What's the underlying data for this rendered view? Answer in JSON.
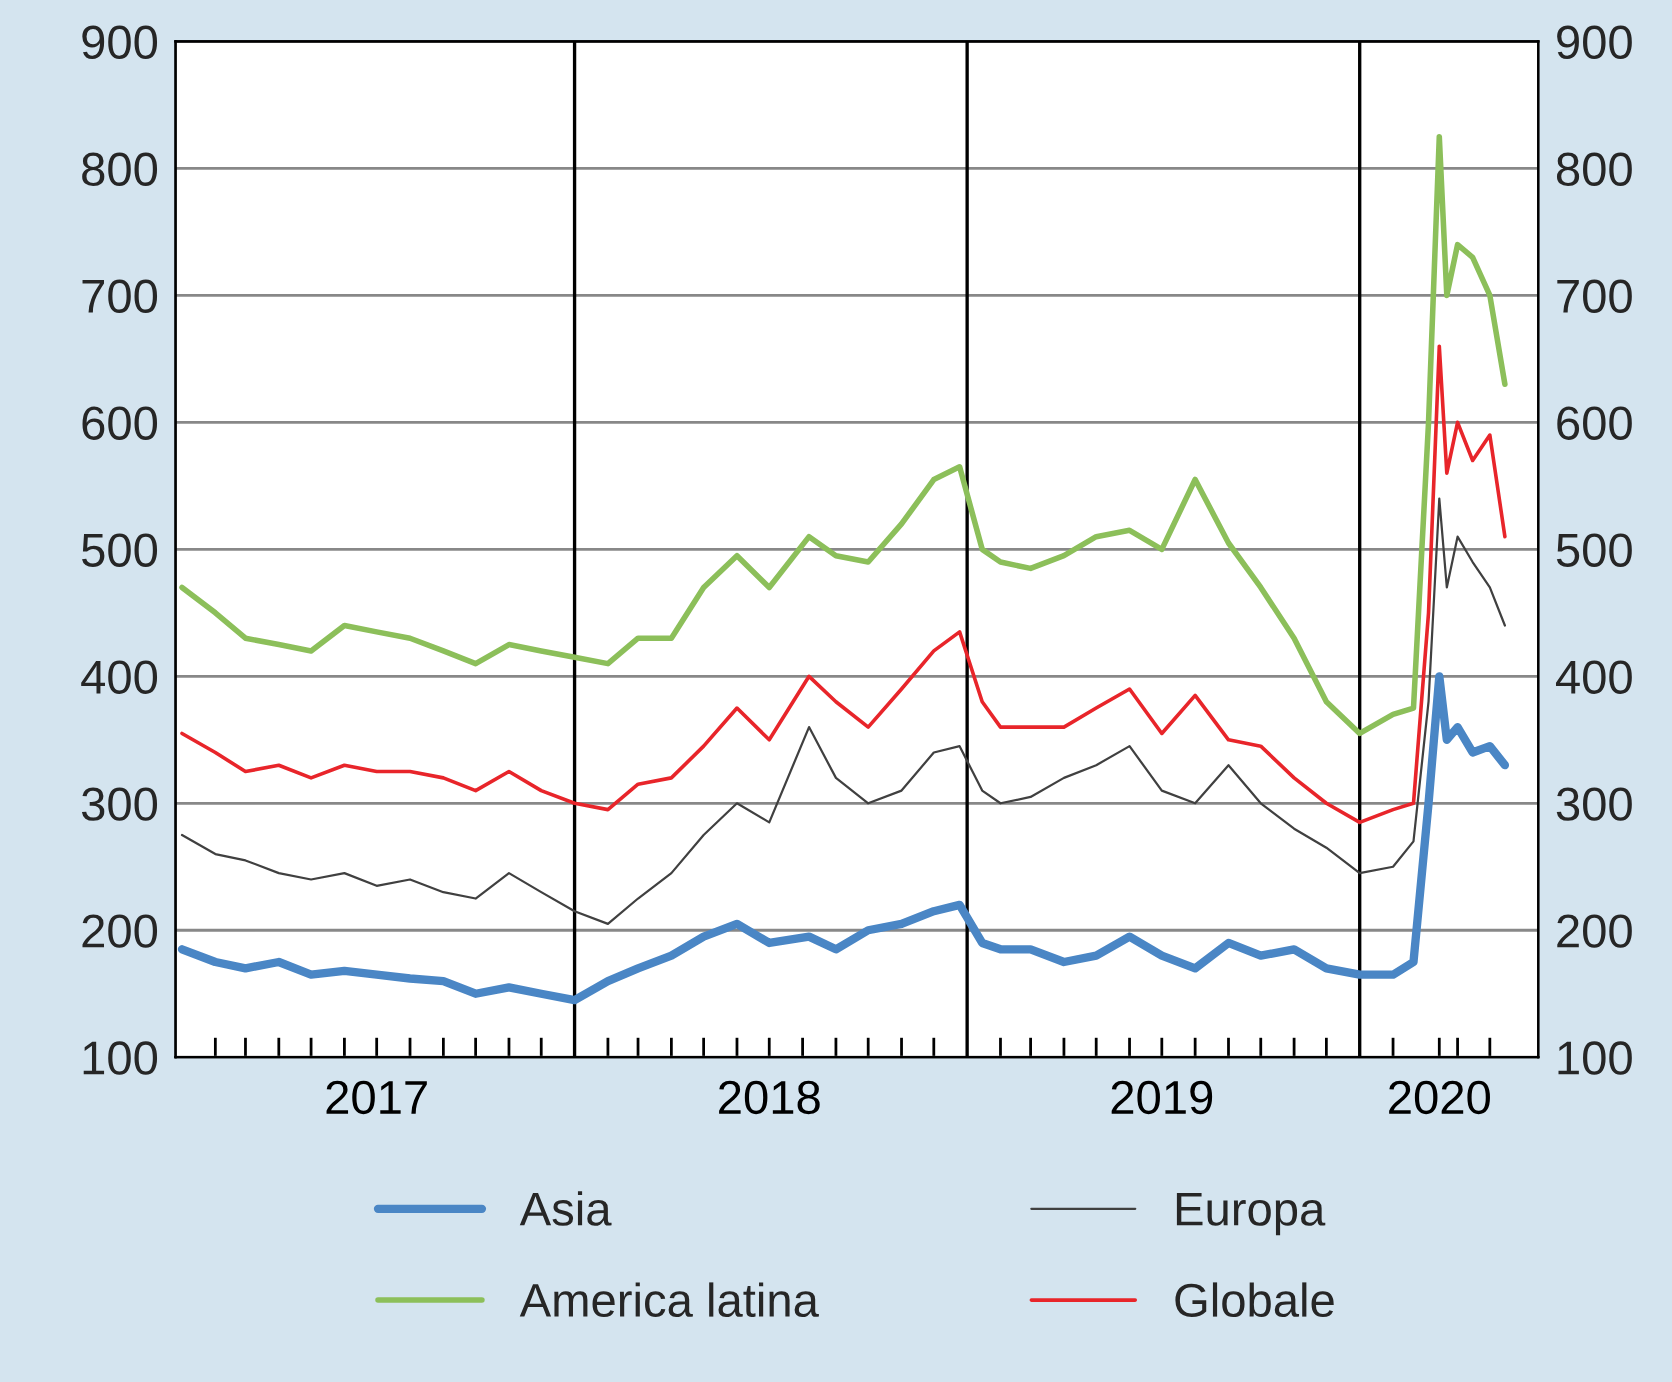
{
  "chart_data": {
    "type": "line",
    "xlim": [
      "2016-12-26",
      "2020-06-15"
    ],
    "xticks": [
      {
        "value": "2017-07-01",
        "label": "2017"
      },
      {
        "value": "2018-07-01",
        "label": "2018"
      },
      {
        "value": "2019-07-01",
        "label": "2019"
      },
      {
        "value": "2020-03-15",
        "label": "2020"
      },
      {
        "value": "2017-02-01",
        "label": null
      },
      {
        "value": "2017-03-01",
        "label": null
      },
      {
        "value": "2017-04-01",
        "label": null
      },
      {
        "value": "2017-05-01",
        "label": null
      },
      {
        "value": "2017-06-01",
        "label": null
      },
      {
        "value": "2017-08-01",
        "label": null
      },
      {
        "value": "2017-09-01",
        "label": null
      },
      {
        "value": "2017-10-01",
        "label": null
      },
      {
        "value": "2017-11-01",
        "label": null
      },
      {
        "value": "2017-12-01",
        "label": null
      },
      {
        "value": "2018-02-01",
        "label": null
      },
      {
        "value": "2018-03-01",
        "label": null
      },
      {
        "value": "2018-04-01",
        "label": null
      },
      {
        "value": "2018-05-01",
        "label": null
      },
      {
        "value": "2018-06-01",
        "label": null
      },
      {
        "value": "2018-08-01",
        "label": null
      },
      {
        "value": "2018-09-01",
        "label": null
      },
      {
        "value": "2018-10-01",
        "label": null
      },
      {
        "value": "2018-11-01",
        "label": null
      },
      {
        "value": "2018-12-01",
        "label": null
      },
      {
        "value": "2019-02-01",
        "label": null
      },
      {
        "value": "2019-03-01",
        "label": null
      },
      {
        "value": "2019-04-01",
        "label": null
      },
      {
        "value": "2019-05-01",
        "label": null
      },
      {
        "value": "2019-06-01",
        "label": null
      },
      {
        "value": "2019-08-01",
        "label": null
      },
      {
        "value": "2019-09-01",
        "label": null
      },
      {
        "value": "2019-10-01",
        "label": null
      },
      {
        "value": "2019-11-01",
        "label": null
      },
      {
        "value": "2019-12-01",
        "label": null
      },
      {
        "value": "2020-02-01",
        "label": null
      },
      {
        "value": "2020-04-01",
        "label": null
      },
      {
        "value": "2020-05-01",
        "label": null
      }
    ],
    "ylim": [
      100,
      900
    ],
    "yticks": [
      100,
      200,
      300,
      400,
      500,
      600,
      700,
      800,
      900
    ],
    "y2lim": [
      100,
      900
    ],
    "y2ticks": [
      100,
      200,
      300,
      400,
      500,
      600,
      700,
      800,
      900
    ],
    "grid": "y",
    "legend": "bottom",
    "marker": "none",
    "line_style": "solid",
    "ref_lines": [
      {
        "axis": "x",
        "value": "2018-01-01",
        "color": "#000000"
      },
      {
        "axis": "x",
        "value": "2019-01-01",
        "color": "#000000"
      },
      {
        "axis": "x",
        "value": "2020-01-01",
        "color": "#000000"
      }
    ],
    "x": [
      "2017-01-01",
      "2017-02-01",
      "2017-03-01",
      "2017-04-01",
      "2017-05-01",
      "2017-06-01",
      "2017-07-01",
      "2017-08-01",
      "2017-09-01",
      "2017-10-01",
      "2017-11-01",
      "2017-12-01",
      "2018-01-01",
      "2018-02-01",
      "2018-03-01",
      "2018-04-01",
      "2018-05-01",
      "2018-06-01",
      "2018-07-01",
      "2018-08-07",
      "2018-09-01",
      "2018-10-01",
      "2018-11-01",
      "2018-12-01",
      "2018-12-25",
      "2019-01-15",
      "2019-02-01",
      "2019-03-01",
      "2019-04-01",
      "2019-05-01",
      "2019-06-01",
      "2019-07-01",
      "2019-08-01",
      "2019-09-01",
      "2019-10-01",
      "2019-11-01",
      "2019-12-01",
      "2020-01-01",
      "2020-02-01",
      "2020-02-20",
      "2020-03-05",
      "2020-03-15",
      "2020-03-22",
      "2020-04-01",
      "2020-04-15",
      "2020-05-01",
      "2020-05-15"
    ],
    "series": [
      {
        "name": "Asia",
        "color": "#4a86c5",
        "values": [
          185,
          175,
          170,
          175,
          165,
          168,
          165,
          162,
          160,
          150,
          155,
          150,
          145,
          160,
          170,
          180,
          195,
          205,
          190,
          195,
          185,
          200,
          205,
          215,
          220,
          190,
          185,
          185,
          175,
          180,
          195,
          180,
          170,
          190,
          180,
          185,
          170,
          165,
          165,
          175,
          300,
          400,
          350,
          360,
          340,
          345,
          330
        ]
      },
      {
        "name": "Europa",
        "color": "#404040",
        "values": [
          275,
          260,
          255,
          245,
          240,
          245,
          235,
          240,
          230,
          225,
          245,
          230,
          215,
          205,
          225,
          245,
          275,
          300,
          285,
          360,
          320,
          300,
          310,
          340,
          345,
          310,
          300,
          305,
          320,
          330,
          345,
          310,
          300,
          330,
          300,
          280,
          265,
          245,
          250,
          270,
          380,
          540,
          470,
          510,
          490,
          470,
          440
        ]
      },
      {
        "name": "America latina",
        "color": "#8cbf5a",
        "values": [
          470,
          450,
          430,
          425,
          420,
          440,
          435,
          430,
          420,
          410,
          425,
          420,
          415,
          410,
          430,
          430,
          470,
          495,
          470,
          510,
          495,
          490,
          520,
          555,
          565,
          500,
          490,
          485,
          495,
          510,
          515,
          500,
          555,
          505,
          470,
          430,
          380,
          355,
          370,
          375,
          600,
          825,
          700,
          740,
          730,
          700,
          630
        ]
      },
      {
        "name": "Globale",
        "color": "#e8252a",
        "values": [
          355,
          340,
          325,
          330,
          320,
          330,
          325,
          325,
          320,
          310,
          325,
          310,
          300,
          295,
          315,
          320,
          345,
          375,
          350,
          400,
          380,
          360,
          390,
          420,
          435,
          380,
          360,
          360,
          360,
          375,
          390,
          355,
          385,
          350,
          345,
          320,
          300,
          285,
          295,
          300,
          450,
          660,
          560,
          600,
          570,
          590,
          510
        ]
      }
    ]
  }
}
